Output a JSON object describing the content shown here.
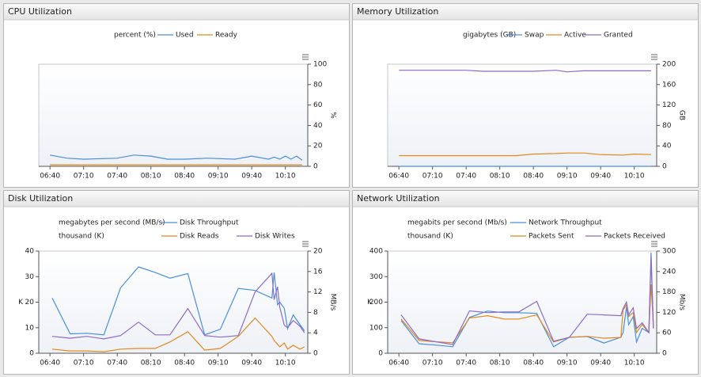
{
  "chart_data": [
    {
      "type": "line",
      "title": "CPU Utilization",
      "y2_unit": "percent (%)",
      "y2label": "%",
      "xlim": [
        "06:30",
        "10:30"
      ],
      "xticks": [
        "06:40",
        "07:10",
        "07:40",
        "08:10",
        "08:40",
        "09:10",
        "09:40",
        "10:10"
      ],
      "y2lim": [
        0,
        100
      ],
      "y2ticks": [
        0,
        20,
        40,
        60,
        80,
        100
      ],
      "x": [
        "06:40",
        "06:55",
        "07:10",
        "07:40",
        "07:55",
        "08:10",
        "08:25",
        "08:40",
        "09:00",
        "09:25",
        "09:40",
        "09:55",
        "10:00",
        "10:05",
        "10:10",
        "10:15",
        "10:20",
        "10:25"
      ],
      "series": [
        {
          "name": "Used",
          "color": "#4a90d9",
          "axis": "y2",
          "values": [
            11,
            8,
            7,
            8,
            11,
            10,
            7,
            7,
            8,
            7,
            10,
            7,
            9,
            7,
            10,
            7,
            10,
            6
          ]
        },
        {
          "name": "Ready",
          "color": "#e08a1e",
          "axis": "y2",
          "values": [
            1.5,
            1.5,
            1.5,
            1.5,
            1.5,
            1.5,
            1.5,
            1.5,
            1.5,
            1.5,
            1.5,
            1.5,
            1.5,
            1.5,
            1.5,
            1.5,
            1.5,
            1.5
          ]
        }
      ]
    },
    {
      "type": "line",
      "title": "Memory Utilization",
      "y2_unit": "gigabytes (GB)",
      "y2label": "GB",
      "xlim": [
        "06:30",
        "10:30"
      ],
      "xticks": [
        "06:40",
        "07:10",
        "07:40",
        "08:10",
        "08:40",
        "09:10",
        "09:40",
        "10:10"
      ],
      "y2lim": [
        0,
        200
      ],
      "y2ticks": [
        0,
        40,
        80,
        120,
        160,
        200
      ],
      "x": [
        "06:40",
        "07:40",
        "07:55",
        "08:25",
        "08:40",
        "09:00",
        "09:10",
        "09:25",
        "09:40",
        "10:00",
        "10:10",
        "10:25"
      ],
      "series": [
        {
          "name": "Swap",
          "color": "#4a90d9",
          "axis": "y2",
          "values": [
            0,
            0,
            0,
            0,
            0,
            0,
            0,
            0,
            0,
            0,
            0,
            0
          ]
        },
        {
          "name": "Active",
          "color": "#e08a1e",
          "axis": "y2",
          "values": [
            21,
            21,
            21,
            21,
            24,
            25,
            26,
            26,
            23,
            22,
            24,
            23
          ]
        },
        {
          "name": "Granted",
          "color": "#8c6bc8",
          "axis": "y2",
          "values": [
            188,
            188,
            186,
            186,
            186,
            188,
            185,
            187,
            187,
            187,
            187,
            187
          ]
        }
      ]
    },
    {
      "type": "line",
      "title": "Disk Utilization",
      "y2_unit": "megabytes per second (MB/s)",
      "y_unit": "thousand (K)",
      "ylabel": "K",
      "y2label": "MB/s",
      "xlim": [
        "06:30",
        "10:30"
      ],
      "xticks": [
        "06:40",
        "07:10",
        "07:40",
        "08:10",
        "08:40",
        "09:10",
        "09:40",
        "10:10"
      ],
      "ylim": [
        0,
        40
      ],
      "yticks": [
        0,
        10,
        20,
        30,
        40
      ],
      "y2lim": [
        0,
        20
      ],
      "y2ticks": [
        0,
        4,
        8,
        12,
        16,
        20
      ],
      "x": [
        "06:42",
        "06:58",
        "07:13",
        "07:28",
        "07:43",
        "07:59",
        "08:14",
        "08:27",
        "08:43",
        "08:58",
        "09:12",
        "09:28",
        "09:43",
        "09:58",
        "10:00",
        "10:03",
        "10:05",
        "10:09",
        "10:12",
        "10:17",
        "10:23",
        "10:27"
      ],
      "series": [
        {
          "name": "Disk Throughput",
          "color": "#4a90d9",
          "axis": "y2",
          "values": [
            10.8,
            3.8,
            3.9,
            3.6,
            12.8,
            16.9,
            15.8,
            14.7,
            15.6,
            3.6,
            4.7,
            12.7,
            12.3,
            10.8,
            15.8,
            9.5,
            10,
            8.8,
            4.8,
            7.5,
            5.6,
            4.4
          ]
        },
        {
          "name": "Disk Reads",
          "color": "#e08a1e",
          "values": [
            1.6,
            0.9,
            0.9,
            0.6,
            1.6,
            1.9,
            1.9,
            4.4,
            8.4,
            1.2,
            1.9,
            6.6,
            13.8,
            6.6,
            5,
            3.5,
            2.5,
            4,
            1.6,
            3.1,
            1.6,
            2.5
          ]
        },
        {
          "name": "Disk Writes",
          "color": "#8c6bc8",
          "values": [
            6.6,
            5.9,
            6.6,
            5.6,
            6.9,
            12.2,
            7.2,
            7.2,
            17.5,
            6.9,
            6.3,
            6.9,
            24,
            31.3,
            21,
            26,
            18,
            11,
            10,
            12.8,
            10.6,
            8
          ]
        }
      ]
    },
    {
      "type": "line",
      "title": "Network Utilization",
      "y2_unit": "megabits per second (Mb/s)",
      "y_unit": "thousand (K)",
      "ylabel": "K",
      "y2label": "Mb/s",
      "xlim": [
        "06:30",
        "10:30"
      ],
      "xticks": [
        "06:40",
        "07:10",
        "07:40",
        "08:10",
        "08:40",
        "09:10",
        "09:40",
        "10:10"
      ],
      "ylim": [
        0,
        400
      ],
      "yticks": [
        0,
        100,
        200,
        300,
        400
      ],
      "y2lim": [
        0,
        300
      ],
      "y2ticks": [
        0,
        60,
        120,
        180,
        240,
        300
      ],
      "x": [
        "06:42",
        "06:58",
        "07:13",
        "07:28",
        "07:43",
        "07:59",
        "08:14",
        "08:27",
        "08:43",
        "08:58",
        "09:12",
        "09:28",
        "09:43",
        "09:58",
        "10:00",
        "10:03",
        "10:05",
        "10:09",
        "10:12",
        "10:17",
        "10:23",
        "10:25",
        "10:27"
      ],
      "series": [
        {
          "name": "Network Throughput",
          "color": "#4a90d9",
          "axis": "y2",
          "values": [
            96,
            28,
            24,
            19,
            105,
            124,
            119,
            119,
            117,
            19,
            47,
            49,
            30,
            47,
            61,
            136,
            84,
            108,
            33,
            73,
            61,
            295,
            75
          ]
        },
        {
          "name": "Packets Sent",
          "color": "#e08a1e",
          "values": [
            134,
            50,
            45,
            41,
            138,
            147,
            134,
            134,
            150,
            44,
            62,
            66,
            59,
            62,
            169,
            190,
            144,
            159,
            81,
            112,
            81,
            269,
            112
          ]
        },
        {
          "name": "Packets Received",
          "color": "#8c6bc8",
          "values": [
            150,
            56,
            45,
            34,
            166,
            159,
            162,
            162,
            203,
            47,
            62,
            153,
            150,
            147,
            175,
            200,
            150,
            178,
            97,
            119,
            81,
            378,
            97
          ]
        }
      ]
    }
  ]
}
